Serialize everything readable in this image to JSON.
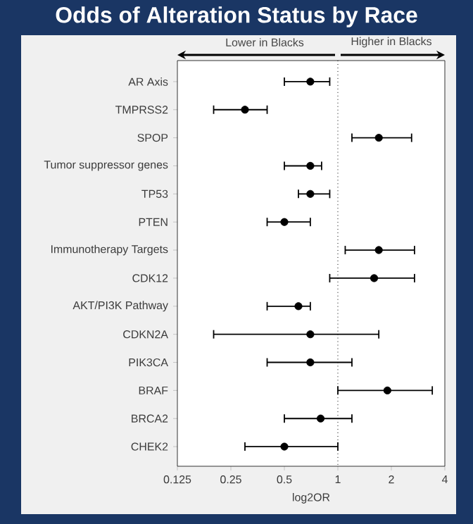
{
  "chart_data": {
    "type": "scatter",
    "orientation": "horizontal",
    "title": "Odds of Alteration Status by Race",
    "xlabel": "log2OR",
    "categories": [
      "AR Axis",
      "TMPRSS2",
      "SPOP",
      "Tumor suppressor genes",
      "TP53",
      "PTEN",
      "Immunotherapy Targets",
      "CDK12",
      "AKT/PI3K Pathway",
      "CDKN2A",
      "PIK3CA",
      "BRAF",
      "BRCA2",
      "CHEK2"
    ],
    "series": [
      {
        "color": "#000000",
        "values": [
          0.7,
          0.3,
          1.7,
          0.7,
          0.7,
          0.5,
          1.7,
          1.6,
          0.6,
          0.7,
          0.7,
          1.9,
          0.8,
          0.5
        ],
        "errors": [
          [
            0.5,
            0.9
          ],
          [
            0.2,
            0.4
          ],
          [
            1.2,
            2.6
          ],
          [
            0.5,
            0.81
          ],
          [
            0.6,
            0.9
          ],
          [
            0.4,
            0.7
          ],
          [
            1.1,
            2.7
          ],
          [
            0.9,
            2.7
          ],
          [
            0.4,
            0.7
          ],
          [
            0.2,
            1.7
          ],
          [
            0.4,
            1.2
          ],
          [
            1.0,
            3.4
          ],
          [
            0.5,
            1.2
          ],
          [
            0.3,
            1.0
          ]
        ]
      }
    ],
    "xlim": [
      0.125,
      4
    ],
    "xticks": [
      0.125,
      0.25,
      0.5,
      1,
      2,
      4
    ],
    "log": "x",
    "marker": "circle",
    "ref_lines": [
      {
        "axis": "x",
        "value": 1,
        "line_style": "dotted",
        "color": "#000000"
      }
    ],
    "annotations": [
      "Lower in Blacks",
      "Higher in Blacks"
    ]
  }
}
